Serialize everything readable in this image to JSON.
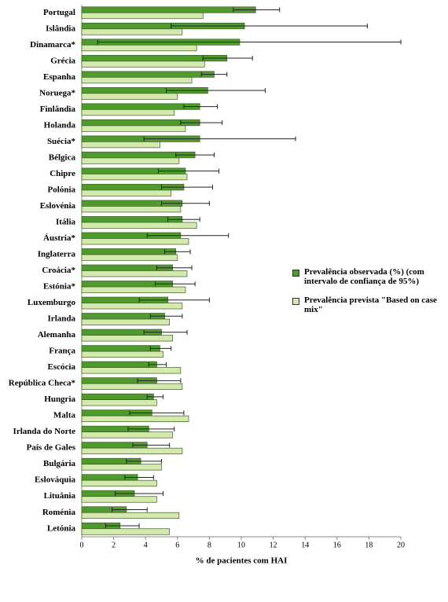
{
  "chart_data": {
    "type": "bar",
    "orientation": "horizontal",
    "xlabel": "% de pacientes com HAI",
    "categories": [
      "Portugal",
      "Islândia",
      "Dinamarca*",
      "Grécia",
      "Espanha",
      "Noruega*",
      "Finlândia",
      "Holanda",
      "Suécia*",
      "Bélgica",
      "Chipre",
      "Polónia",
      "Eslovénia",
      "Itália",
      "Áustria*",
      "Inglaterra",
      "Croácia*",
      "Estónia*",
      "Luxemburgo",
      "Irlanda",
      "Alemanha",
      "França",
      "Escócia",
      "República Checa*",
      "Hungria",
      "Malta",
      "Irlanda do Norte",
      "País de Gales",
      "Bulgária",
      "Eslováquia",
      "Lituânia",
      "Roménia",
      "Letónia"
    ],
    "series": [
      {
        "name": "Prevalência observada (%) (com intervalo de confiança de 95%)",
        "color": "#4f9a2c",
        "values": [
          10.9,
          10.2,
          9.9,
          9.1,
          8.3,
          7.9,
          7.4,
          7.4,
          7.4,
          7.1,
          6.5,
          6.4,
          6.3,
          6.3,
          6.2,
          5.9,
          5.7,
          5.7,
          5.4,
          5.2,
          5.0,
          4.9,
          4.7,
          4.7,
          4.5,
          4.4,
          4.2,
          4.1,
          3.7,
          3.5,
          3.3,
          2.8,
          2.4
        ],
        "ci_low": [
          9.5,
          5.6,
          1.0,
          7.6,
          7.5,
          5.3,
          6.4,
          6.2,
          3.9,
          5.9,
          4.8,
          5.0,
          5.0,
          5.4,
          4.1,
          5.2,
          4.7,
          4.6,
          3.6,
          4.3,
          3.9,
          4.3,
          4.2,
          3.5,
          4.1,
          3.0,
          2.9,
          3.2,
          2.8,
          2.7,
          2.1,
          1.9,
          1.5
        ],
        "ci_high": [
          12.4,
          17.9,
          20,
          10.7,
          9.1,
          11.5,
          8.5,
          8.8,
          13.4,
          8.3,
          8.6,
          8.2,
          8.0,
          7.4,
          9.2,
          6.8,
          6.9,
          7.1,
          8.0,
          6.3,
          6.6,
          5.6,
          5.3,
          6.2,
          5.1,
          6.4,
          5.8,
          5.5,
          5.0,
          4.5,
          5.1,
          4.1,
          3.6
        ]
      },
      {
        "name": "Prevalência prevista \"Based on case mix\"",
        "color": "#d4e9ad",
        "values": [
          7.6,
          6.3,
          7.2,
          7.7,
          6.9,
          6.0,
          5.8,
          6.5,
          4.9,
          6.1,
          6.6,
          5.6,
          6.2,
          7.2,
          6.7,
          6.0,
          6.6,
          6.5,
          6.3,
          5.5,
          5.7,
          5.1,
          6.2,
          6.3,
          4.7,
          6.7,
          5.7,
          6.3,
          5.0,
          4.7,
          4.7,
          6.1,
          5.5
        ]
      }
    ],
    "xlim": [
      0,
      20
    ],
    "xticks": [
      0,
      2,
      4,
      6,
      8,
      10,
      12,
      14,
      16,
      18,
      20
    ]
  }
}
